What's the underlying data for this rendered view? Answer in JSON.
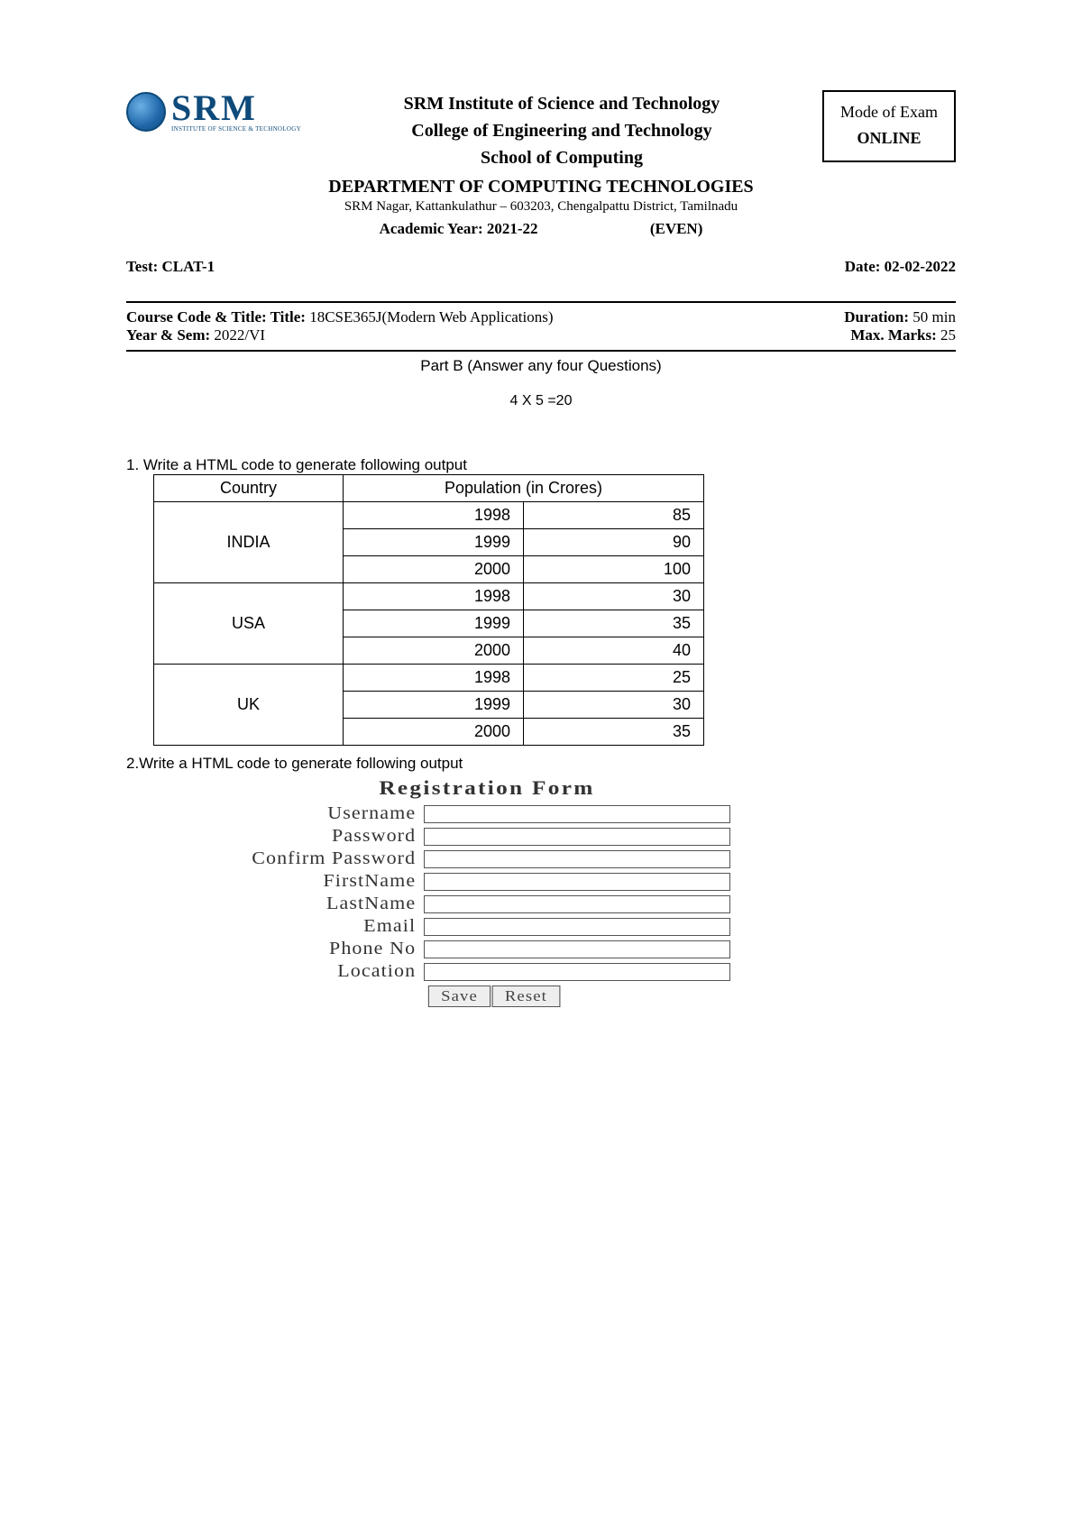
{
  "header": {
    "logo_main": "SRM",
    "logo_sub": "INSTITUTE OF SCIENCE & TECHNOLOGY",
    "line1": "SRM Institute of Science and Technology",
    "line2": "College of Engineering and Technology",
    "line3": "School of Computing",
    "mode_label": "Mode of Exam",
    "mode_value": "ONLINE",
    "dept": "DEPARTMENT OF COMPUTING TECHNOLOGIES",
    "address": "SRM Nagar, Kattankulathur – 603203, Chengalpattu District, Tamilnadu",
    "ay_label": "Academic Year:",
    "ay_value": "2021-22",
    "even": "(EVEN)"
  },
  "meta": {
    "test_label": "Test:",
    "test_value": "CLAT-1",
    "date_label": "Date:",
    "date_value": "02-02-2022",
    "course_label": "Course Code & Title: Title:",
    "course_value": "18CSE365J(Modern Web Applications)",
    "duration_label": "Duration:",
    "duration_value": "50 min",
    "ys_label": "Year & Sem:",
    "ys_value": "2022/VI",
    "max_label": "Max. Marks:",
    "max_value": "25"
  },
  "partb": {
    "title": "Part B (Answer any four Questions)",
    "marks": "4 X 5 =20"
  },
  "q1": {
    "text": "1. Write a HTML code to generate following output",
    "table": {
      "headers": [
        "Country",
        "Population (in Crores)"
      ],
      "rows": [
        {
          "country": "INDIA",
          "data": [
            [
              "1998",
              "85"
            ],
            [
              "1999",
              "90"
            ],
            [
              "2000",
              "100"
            ]
          ]
        },
        {
          "country": "USA",
          "data": [
            [
              "1998",
              "30"
            ],
            [
              "1999",
              "35"
            ],
            [
              "2000",
              "40"
            ]
          ]
        },
        {
          "country": "UK",
          "data": [
            [
              "1998",
              "25"
            ],
            [
              "1999",
              "30"
            ],
            [
              "2000",
              "35"
            ]
          ]
        }
      ]
    }
  },
  "q2": {
    "text": "2.Write a HTML code to generate following output",
    "form": {
      "title": "Registration Form",
      "fields": [
        "Username",
        "Password",
        "Confirm Password",
        "FirstName",
        "LastName",
        "Email",
        "Phone No",
        "Location"
      ],
      "buttons": [
        "Save",
        "Reset"
      ]
    }
  }
}
